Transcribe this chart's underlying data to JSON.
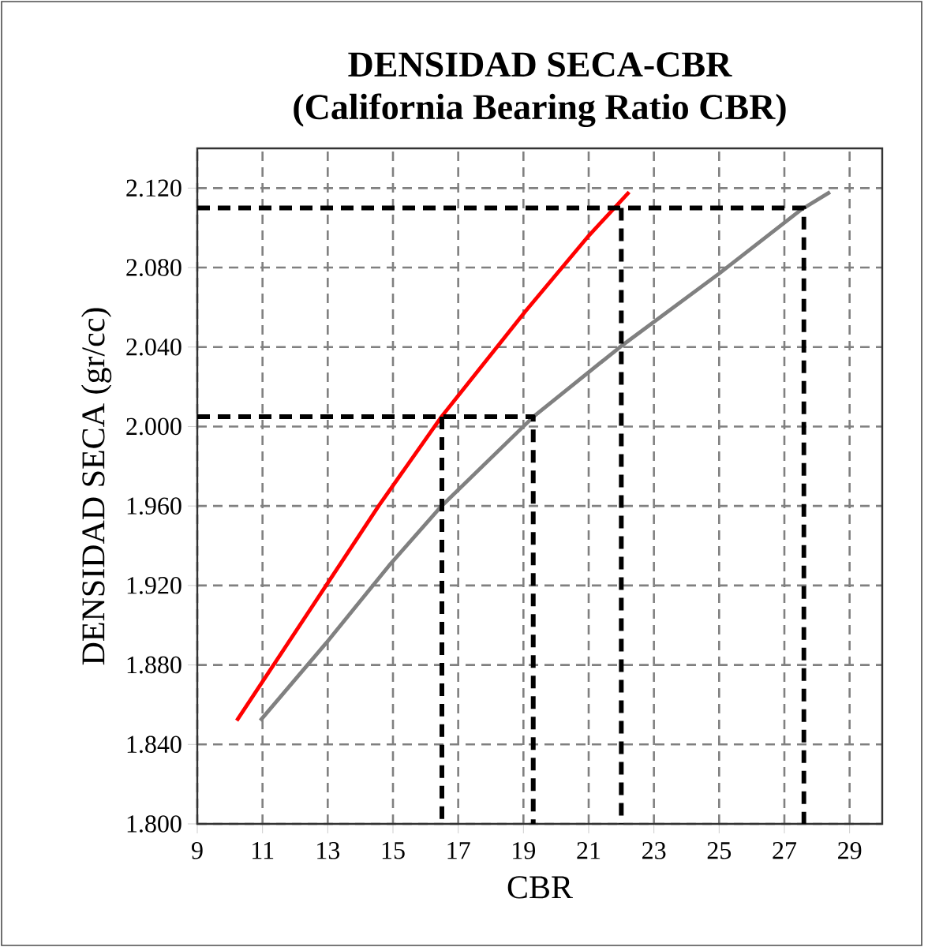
{
  "chart_data": {
    "type": "line",
    "title": "DENSIDAD SECA-CBR",
    "subtitle": "(California Bearing Ratio CBR)",
    "xlabel": "CBR",
    "ylabel": "DENSIDAD SECA (gr/cc)",
    "xlim": [
      9,
      30
    ],
    "ylim": [
      1.8,
      2.14
    ],
    "xticks": [
      9,
      11,
      13,
      15,
      17,
      19,
      21,
      23,
      25,
      27,
      29
    ],
    "yticks": [
      {
        "value": 1.8,
        "label": "1.800"
      },
      {
        "value": 1.84,
        "label": "1.840"
      },
      {
        "value": 1.88,
        "label": "1.880"
      },
      {
        "value": 1.92,
        "label": "1.920"
      },
      {
        "value": 1.96,
        "label": "1.960"
      },
      {
        "value": 2.0,
        "label": "2.000"
      },
      {
        "value": 2.04,
        "label": "2.040"
      },
      {
        "value": 2.08,
        "label": "2.080"
      },
      {
        "value": 2.12,
        "label": "2.120"
      }
    ],
    "grid": true,
    "series": [
      {
        "color": "#ff0000",
        "x": [
          10.21,
          12.95,
          14.56,
          16.49,
          19.06,
          21.0,
          22.24
        ],
        "values": [
          1.852,
          1.92,
          1.96,
          2.005,
          2.058,
          2.096,
          2.118
        ]
      },
      {
        "color": "#808080",
        "x": [
          10.93,
          12.95,
          14.88,
          16.49,
          19.31,
          21.96,
          25.0,
          27.5,
          28.4
        ],
        "values": [
          1.852,
          1.891,
          1.93,
          1.96,
          2.005,
          2.04,
          2.077,
          2.109,
          2.118
        ]
      },
      {
        "color": "#000000",
        "line_style": "dashed",
        "x": [
          9,
          19.3,
          19.3
        ],
        "values": [
          2.005,
          2.005,
          1.8
        ]
      },
      {
        "color": "#000000",
        "line_style": "dashed",
        "x": [
          16.5,
          16.5
        ],
        "values": [
          2.005,
          1.8
        ]
      },
      {
        "color": "#000000",
        "line_style": "dashed",
        "x": [
          9,
          27.6,
          27.6
        ],
        "values": [
          2.11,
          2.11,
          1.8
        ]
      },
      {
        "color": "#000000",
        "line_style": "dashed",
        "x": [
          22.0,
          22.0
        ],
        "values": [
          2.11,
          1.8
        ]
      }
    ]
  }
}
